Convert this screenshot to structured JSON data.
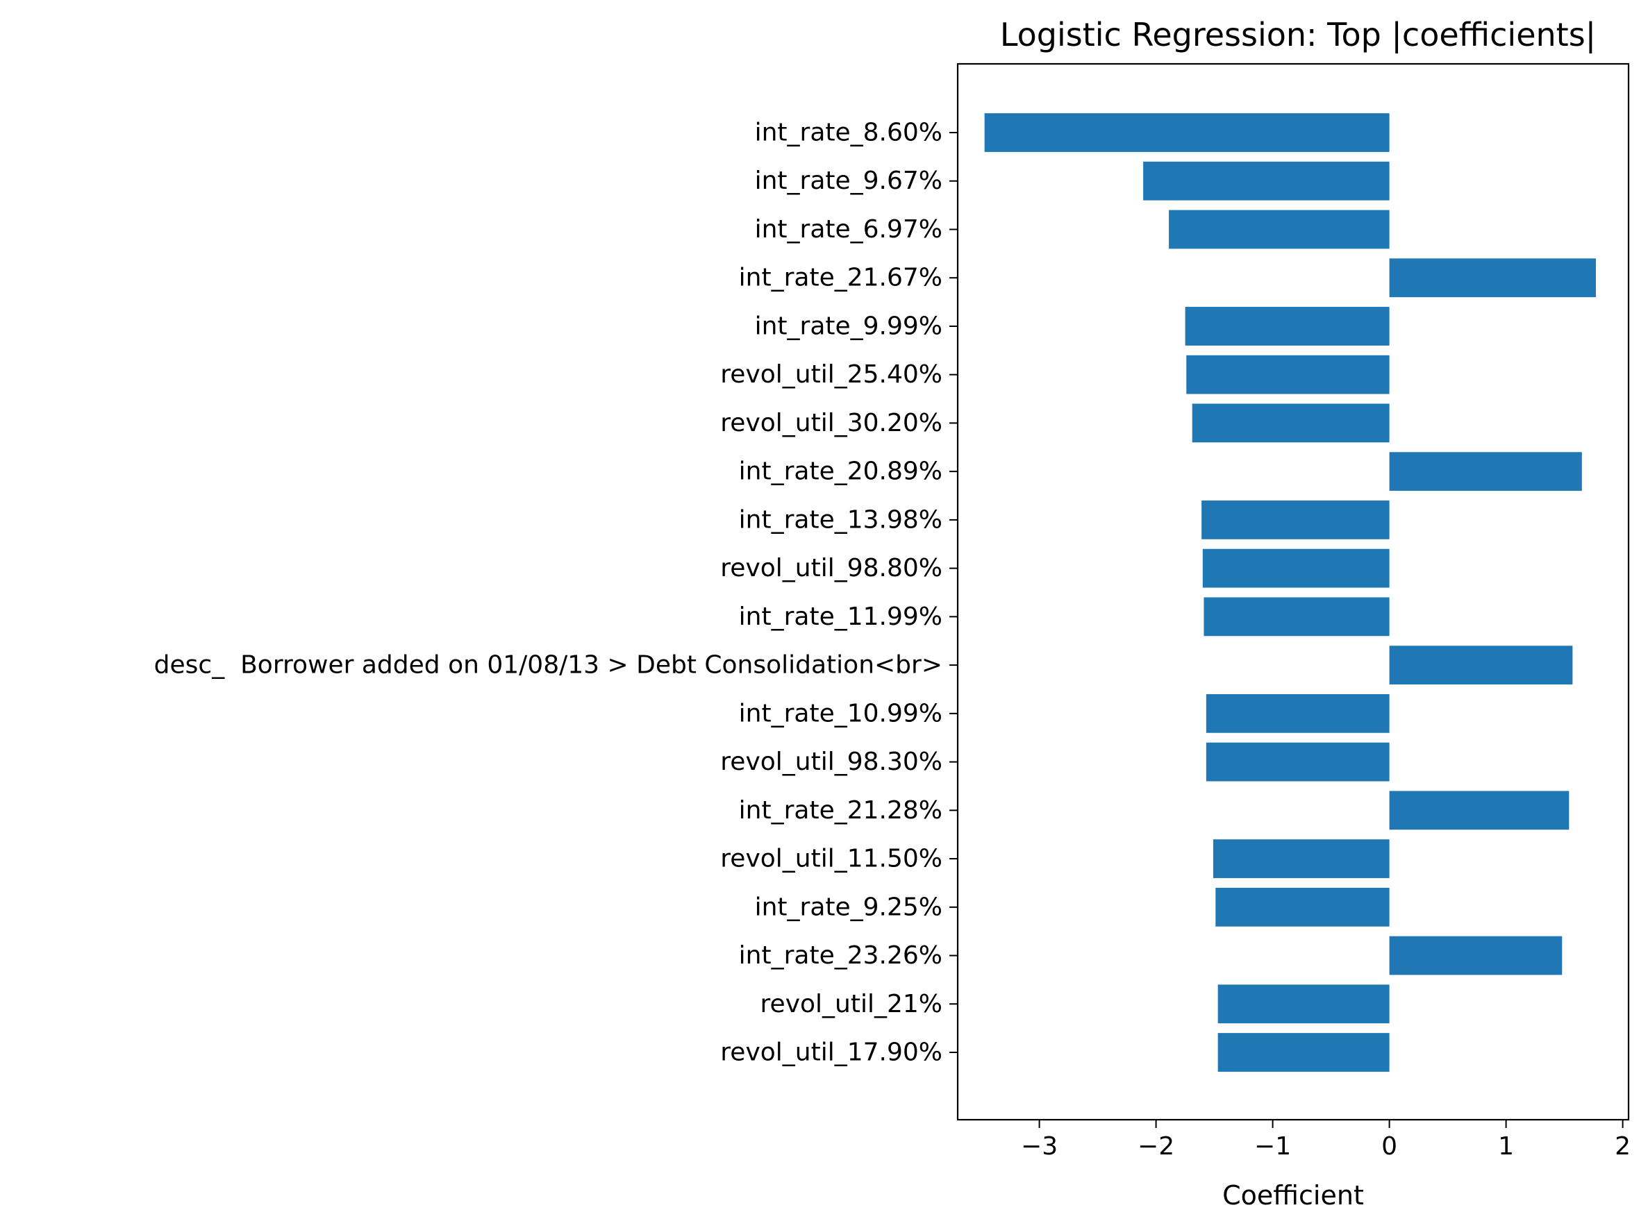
{
  "chart_data": {
    "type": "bar",
    "orientation": "horizontal",
    "title": "Logistic Regression: Top |coefficients|",
    "xlabel": "Coefficient",
    "ylabel": "",
    "xlim": [
      -3.7,
      2.05
    ],
    "xticks": [
      -3,
      -2,
      -1,
      0,
      1,
      2
    ],
    "xtick_labels": [
      "−3",
      "−2",
      "−1",
      "0",
      "1",
      "2"
    ],
    "grid": false,
    "bar_color": "#1f77b4",
    "categories": [
      "int_rate_8.60%",
      "int_rate_9.67%",
      "int_rate_6.97%",
      "int_rate_21.67%",
      "int_rate_9.99%",
      "revol_util_25.40%",
      "revol_util_30.20%",
      "int_rate_20.89%",
      "int_rate_13.98%",
      "revol_util_98.80%",
      "int_rate_11.99%",
      "desc_  Borrower added on 01/08/13 > Debt Consolidation<br>",
      "int_rate_10.99%",
      "revol_util_98.30%",
      "int_rate_21.28%",
      "revol_util_11.50%",
      "int_rate_9.25%",
      "int_rate_23.26%",
      "revol_util_21%",
      "revol_util_17.90%"
    ],
    "values": [
      -3.47,
      -2.11,
      -1.89,
      1.77,
      -1.75,
      -1.74,
      -1.69,
      1.65,
      -1.61,
      -1.6,
      -1.59,
      1.57,
      -1.57,
      -1.57,
      1.54,
      -1.51,
      -1.49,
      1.48,
      -1.47,
      -1.47
    ]
  }
}
